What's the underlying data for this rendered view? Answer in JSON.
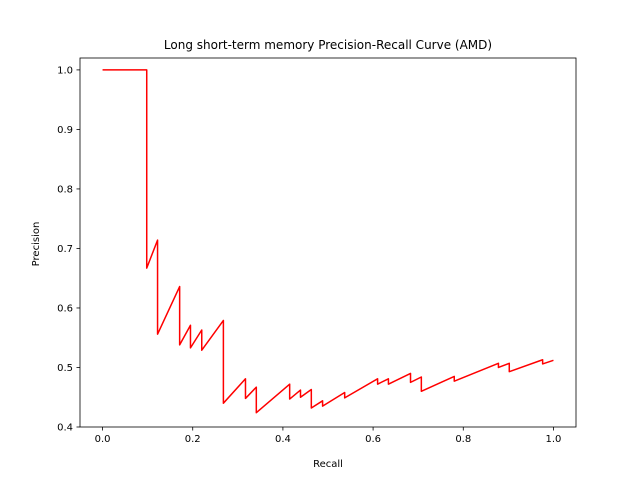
{
  "chart_data": {
    "type": "line",
    "title": "Long short-term memory Precision-Recall Curve (AMD)",
    "xlabel": "Recall",
    "ylabel": "Precision",
    "xlim": [
      -0.05,
      1.05
    ],
    "ylim": [
      0.4,
      1.02
    ],
    "xticks": [
      0.0,
      0.2,
      0.4,
      0.6,
      0.8,
      1.0
    ],
    "xtick_labels": [
      "0.0",
      "0.2",
      "0.4",
      "0.6",
      "0.8",
      "1.0"
    ],
    "yticks": [
      0.4,
      0.5,
      0.6,
      0.7,
      0.8,
      0.9,
      1.0
    ],
    "ytick_labels": [
      "0.4",
      "0.5",
      "0.6",
      "0.7",
      "0.8",
      "0.9",
      "1.0"
    ],
    "grid": false,
    "series": [
      {
        "color": "#ff0000",
        "points": [
          [
            0.0,
            1.0
          ],
          [
            0.098,
            1.0
          ],
          [
            0.098,
            0.667
          ],
          [
            0.122,
            0.714
          ],
          [
            0.122,
            0.556
          ],
          [
            0.171,
            0.636
          ],
          [
            0.171,
            0.538
          ],
          [
            0.195,
            0.571
          ],
          [
            0.195,
            0.533
          ],
          [
            0.22,
            0.563
          ],
          [
            0.22,
            0.529
          ],
          [
            0.268,
            0.579
          ],
          [
            0.268,
            0.44
          ],
          [
            0.317,
            0.481
          ],
          [
            0.317,
            0.448
          ],
          [
            0.341,
            0.467
          ],
          [
            0.341,
            0.424
          ],
          [
            0.415,
            0.472
          ],
          [
            0.415,
            0.447
          ],
          [
            0.439,
            0.462
          ],
          [
            0.439,
            0.45
          ],
          [
            0.463,
            0.463
          ],
          [
            0.463,
            0.432
          ],
          [
            0.488,
            0.444
          ],
          [
            0.488,
            0.435
          ],
          [
            0.537,
            0.458
          ],
          [
            0.537,
            0.449
          ],
          [
            0.61,
            0.481
          ],
          [
            0.61,
            0.472
          ],
          [
            0.634,
            0.481
          ],
          [
            0.634,
            0.472
          ],
          [
            0.683,
            0.49
          ],
          [
            0.683,
            0.475
          ],
          [
            0.707,
            0.484
          ],
          [
            0.707,
            0.46
          ],
          [
            0.78,
            0.485
          ],
          [
            0.78,
            0.477
          ],
          [
            0.878,
            0.507
          ],
          [
            0.878,
            0.5
          ],
          [
            0.902,
            0.507
          ],
          [
            0.902,
            0.493
          ],
          [
            0.976,
            0.513
          ],
          [
            0.976,
            0.506
          ],
          [
            1.0,
            0.512
          ]
        ]
      }
    ]
  }
}
